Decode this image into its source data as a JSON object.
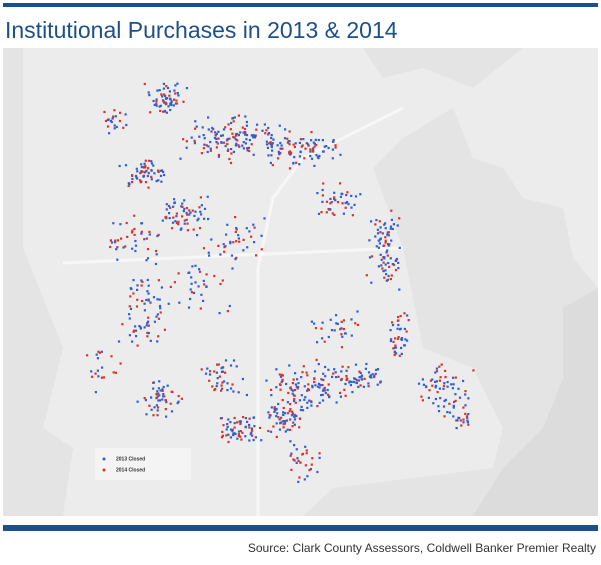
{
  "header": {
    "title": "Institutional Purchases in 2013 & 2014"
  },
  "legend": [
    {
      "label": "2013 Closed",
      "color": "#2f5fd0"
    },
    {
      "label": "2014 Closed",
      "color": "#d8342c"
    }
  ],
  "footer": {
    "source": "Source: Clark County Assessors, Coldwell Banker Premier Realty"
  }
}
